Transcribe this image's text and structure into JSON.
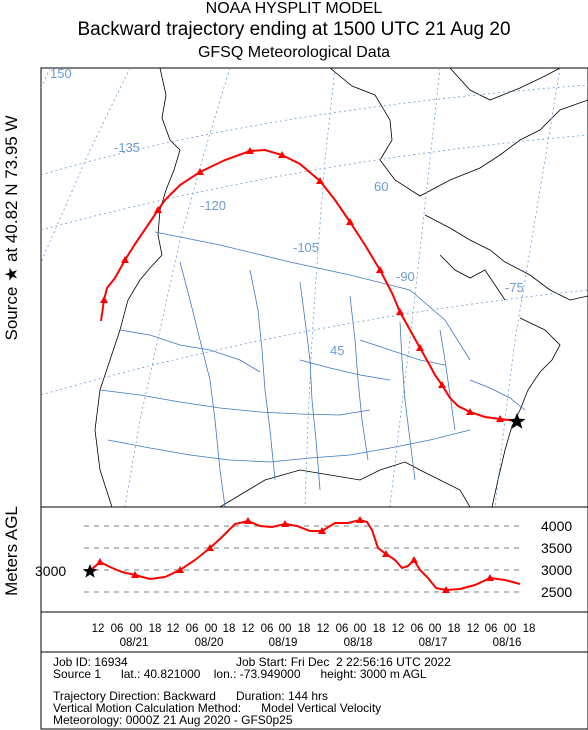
{
  "header": {
    "line1": "NOAA HYSPLIT MODEL",
    "line2": "Backward trajectory ending at 1500 UTC 21 Aug 20",
    "line3": "GFSQ Meteorological Data"
  },
  "side_labels": {
    "map": "Source ★ at 40.82 N 73.95 W",
    "height": "Meters AGL"
  },
  "map": {
    "longitude_labels": [
      "150",
      "-135",
      "-120",
      "-105",
      "-90",
      "-75"
    ],
    "latitude_labels": [
      "60",
      "45"
    ],
    "source_marker_icon": "star-icon",
    "trajectory_color": "#ff0000",
    "grid_color": "#6c9bd2"
  },
  "height_panel": {
    "y_ticks": [
      "4000",
      "3500",
      "3000",
      "2500"
    ],
    "source_height": "3000",
    "hour_ticks": [
      "12",
      "06",
      "00",
      "18",
      "12",
      "06",
      "00",
      "18",
      "12",
      "06",
      "00",
      "18",
      "12",
      "06",
      "00",
      "18",
      "12",
      "06",
      "00",
      "18",
      "12",
      "06",
      "00",
      "18"
    ],
    "dates": [
      "08/21",
      "08/20",
      "08/19",
      "08/18",
      "08/17",
      "08/16"
    ]
  },
  "footer": {
    "job_id": "Job ID: 16934",
    "job_start": "Job Start: Fri Dec  2 22:56:16 UTC 2022",
    "source_line": "Source 1      lat.: 40.821000    lon.: -73.949000      height: 3000 m AGL",
    "direction": "Trajectory Direction: Backward      Duration: 144 hrs",
    "vertical": "Vertical Motion Calculation Method:      Model Vertical Velocity",
    "meteorology": "Meteorology: 0000Z 21 Aug 2020 - GFS0p25"
  }
}
